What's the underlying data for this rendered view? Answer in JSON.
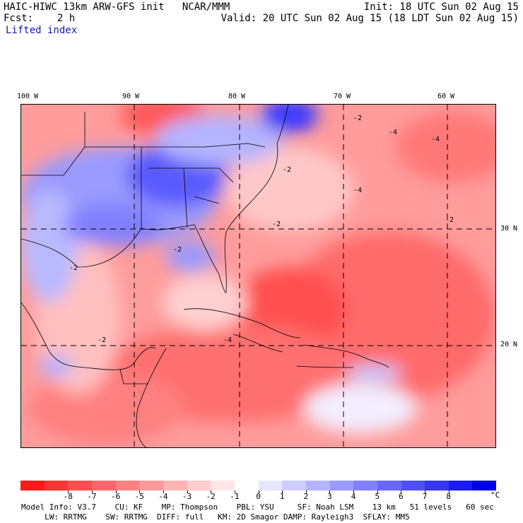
{
  "header": {
    "model_line": "HAIC-HIWC 13km ARW-GFS init   NCAR/MMM",
    "fcst_line": "Fcst:    2 h",
    "field_name": "Lifted index",
    "init_line": "Init: 18 UTC Sun 02 Aug 15",
    "valid_line": "Valid: 20 UTC Sun 02 Aug 15 (18 LDT Sun 02 Aug 15)"
  },
  "map": {
    "lon_labels": [
      "100 W",
      "90 W",
      "80 W",
      "70 W",
      "60 W"
    ],
    "lat_labels": [
      "30 N",
      "20 N"
    ],
    "contour_labels": [
      "-2",
      "-2",
      "-2",
      "-2",
      "-2",
      "-2",
      "-4",
      "-4",
      "-4",
      "-2",
      "-4"
    ]
  },
  "colorbar": {
    "colors": [
      "#ff1a1a",
      "#ff3636",
      "#ff4f4f",
      "#ff6868",
      "#ff8181",
      "#ff9a9a",
      "#ffb4b4",
      "#ffcdcd",
      "#ffe6e6",
      "#ffffff",
      "#e6e6ff",
      "#cdcdff",
      "#b4b4ff",
      "#9a9aff",
      "#8181ff",
      "#6868ff",
      "#4f4fff",
      "#3636ff",
      "#1a1aff",
      "#0000e6"
    ],
    "labels": [
      "-8",
      "-7",
      "-6",
      "-5",
      "-4",
      "-3",
      "-2",
      "-1",
      "0",
      "1",
      "2",
      "3",
      "4",
      "5",
      "6",
      "7",
      "8"
    ],
    "unit": "°C"
  },
  "footer": {
    "line1": "Model Info: V3.7    CU: KF    MP: Thompson    PBL: YSU     SF: Noah LSM    13 km   51 levels   60 sec",
    "line2": "     LW: RRTMG    SW: RRTMG  DIFF: full   KM: 2D Smagor DAMP: Rayleigh3  SFLAY: MM5"
  }
}
